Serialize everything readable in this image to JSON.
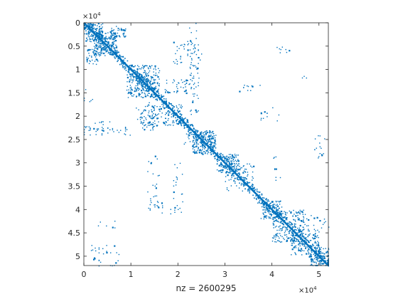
{
  "chart_data": {
    "type": "scatter",
    "subtype": "sparsity-pattern",
    "title": "",
    "xlabel": "nz = 2600295",
    "ylabel": "",
    "xlim": [
      0,
      52000
    ],
    "ylim": [
      52000,
      0
    ],
    "y_axis_reversed": true,
    "grid": false,
    "legend": "none",
    "x_ticks": [
      0,
      10000,
      20000,
      30000,
      40000,
      50000
    ],
    "x_tick_labels": [
      "0",
      "1",
      "2",
      "3",
      "4",
      "5"
    ],
    "y_ticks": [
      0,
      5000,
      10000,
      15000,
      20000,
      25000,
      30000,
      35000,
      40000,
      45000,
      50000
    ],
    "y_tick_labels": [
      "0",
      "0.5",
      "1",
      "1.5",
      "2",
      "2.5",
      "3",
      "3.5",
      "4",
      "4.5",
      "5"
    ],
    "x_exponent_base": "×10",
    "x_exponent_power": "4",
    "y_exponent_base": "×10",
    "y_exponent_power": "4",
    "marker_color": "#0072BD",
    "diagonal": {
      "from": 0,
      "to": 52000
    },
    "dense_blocks": [
      {
        "r0": 0,
        "r1": 4000,
        "c0": 0,
        "c1": 4000,
        "density": 0.35
      },
      {
        "r0": 2000,
        "r1": 7000,
        "c0": 2000,
        "c1": 7000,
        "density": 0.3
      },
      {
        "r0": 500,
        "r1": 3000,
        "c0": 5500,
        "c1": 9000,
        "density": 0.18
      },
      {
        "r0": 5500,
        "r1": 9000,
        "c0": 500,
        "c1": 3000,
        "density": 0.18
      },
      {
        "r0": 9000,
        "r1": 16000,
        "c0": 9000,
        "c1": 16000,
        "density": 0.18
      },
      {
        "r0": 11000,
        "r1": 14500,
        "c0": 11000,
        "c1": 14500,
        "density": 0.25
      },
      {
        "r0": 12000,
        "r1": 15000,
        "c0": 17000,
        "c1": 23000,
        "density": 0.1
      },
      {
        "r0": 17000,
        "r1": 23000,
        "c0": 12000,
        "c1": 15000,
        "density": 0.1
      },
      {
        "r0": 17000,
        "r1": 22000,
        "c0": 11000,
        "c1": 21000,
        "density": 0.09
      },
      {
        "r0": 23000,
        "r1": 28000,
        "c0": 23000,
        "c1": 28000,
        "density": 0.32
      },
      {
        "r0": 28000,
        "r1": 32000,
        "c0": 28000,
        "c1": 33000,
        "density": 0.22
      },
      {
        "r0": 30000,
        "r1": 36000,
        "c0": 30000,
        "c1": 36000,
        "density": 0.08
      },
      {
        "r0": 38000,
        "r1": 42000,
        "c0": 38000,
        "c1": 42000,
        "density": 0.3
      },
      {
        "r0": 40000,
        "r1": 47000,
        "c0": 40000,
        "c1": 47000,
        "density": 0.16
      },
      {
        "r0": 44000,
        "r1": 50000,
        "c0": 44000,
        "c1": 50000,
        "density": 0.14
      },
      {
        "r0": 48000,
        "r1": 52000,
        "c0": 48000,
        "c1": 52000,
        "density": 0.25
      }
    ],
    "off_diagonal_bands": [
      {
        "r0": 0,
        "r1": 10000,
        "c0": 22000,
        "c1": 24000,
        "density": 0.05
      },
      {
        "r0": 22000,
        "r1": 24000,
        "c0": 0,
        "c1": 10000,
        "density": 0.05
      },
      {
        "r0": 4000,
        "r1": 9000,
        "c0": 19000,
        "c1": 25000,
        "density": 0.05
      },
      {
        "r0": 14000,
        "r1": 17000,
        "c0": 0,
        "c1": 2000,
        "density": 0.04
      },
      {
        "r0": 21000,
        "r1": 23000,
        "c0": 0,
        "c1": 8000,
        "density": 0.06
      },
      {
        "r0": 9000,
        "r1": 20000,
        "c0": 22500,
        "c1": 24500,
        "density": 0.06
      },
      {
        "r0": 28000,
        "r1": 40000,
        "c0": 13500,
        "c1": 16000,
        "density": 0.03
      },
      {
        "r0": 30000,
        "r1": 40000,
        "c0": 19000,
        "c1": 21000,
        "density": 0.03
      },
      {
        "r0": 38000,
        "r1": 41000,
        "c0": 14000,
        "c1": 21000,
        "density": 0.04
      },
      {
        "r0": 42000,
        "r1": 44000,
        "c0": 3000,
        "c1": 7000,
        "density": 0.03
      },
      {
        "r0": 47500,
        "r1": 52000,
        "c0": 1500,
        "c1": 8000,
        "density": 0.04
      },
      {
        "r0": 13000,
        "r1": 15000,
        "c0": 33000,
        "c1": 40000,
        "density": 0.03
      },
      {
        "r0": 5000,
        "r1": 7000,
        "c0": 40000,
        "c1": 44000,
        "density": 0.04
      },
      {
        "r0": 18000,
        "r1": 21000,
        "c0": 37000,
        "c1": 42000,
        "density": 0.03
      },
      {
        "r0": 24000,
        "r1": 29000,
        "c0": 49000,
        "c1": 52000,
        "density": 0.04
      },
      {
        "r0": 37000,
        "r1": 42000,
        "c0": 36500,
        "c1": 38000,
        "density": 0.03
      },
      {
        "r0": 28000,
        "r1": 34000,
        "c0": 40000,
        "c1": 42000,
        "density": 0.03
      },
      {
        "r0": 23000,
        "r1": 27000,
        "c0": 21000,
        "c1": 23000,
        "density": 0.05
      },
      {
        "r0": 10000,
        "r1": 13000,
        "c0": 46000,
        "c1": 48000,
        "density": 0.02
      },
      {
        "r0": 41000,
        "r1": 44000,
        "c0": 47000,
        "c1": 52000,
        "density": 0.04
      }
    ]
  }
}
